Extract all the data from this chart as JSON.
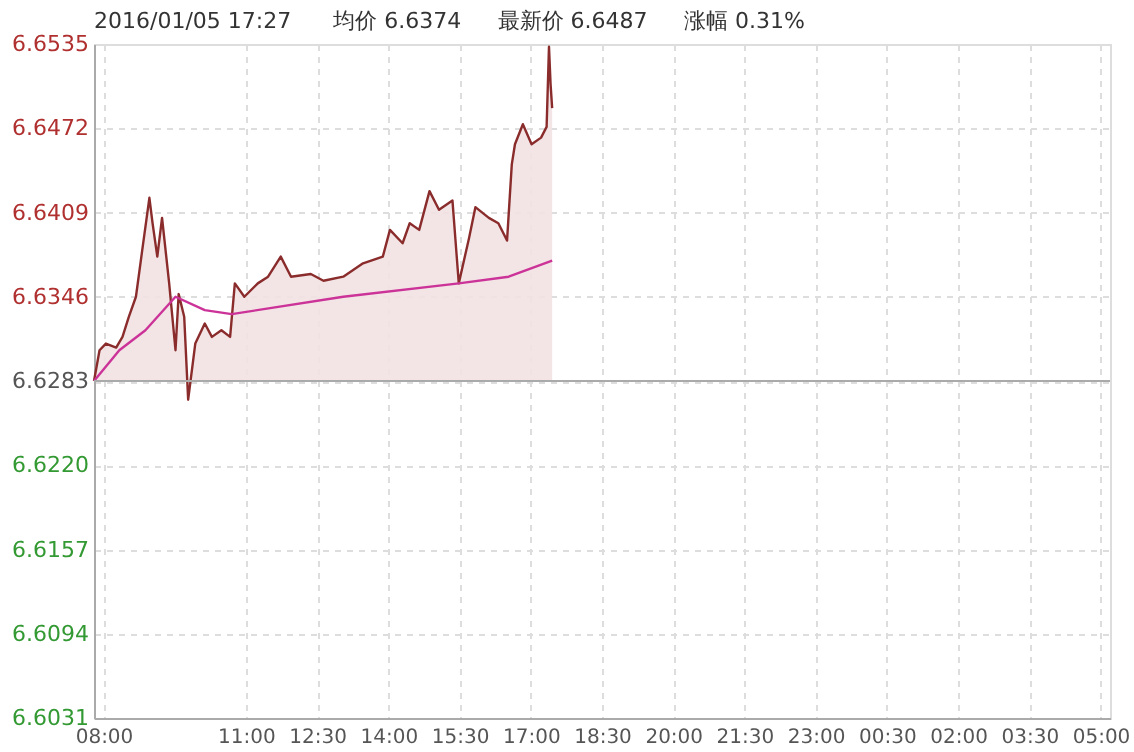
{
  "chart_data": {
    "type": "line",
    "annotations": [
      "2016/01/05 17:27",
      "均价 6.6374",
      "最新价 6.6487",
      "涨幅 0.31%"
    ],
    "xlim": [
      "2016-01-05T07:48",
      "2016-01-06T05:12"
    ],
    "xticks": [
      {
        "value": "2016-01-05T08:00",
        "label": "08:00"
      },
      {
        "value": "2016-01-05T11:00",
        "label": "11:00"
      },
      {
        "value": "2016-01-05T12:30",
        "label": "12:30"
      },
      {
        "value": "2016-01-05T14:00",
        "label": "14:00"
      },
      {
        "value": "2016-01-05T15:30",
        "label": "15:30"
      },
      {
        "value": "2016-01-05T17:00",
        "label": "17:00"
      },
      {
        "value": "2016-01-05T18:30",
        "label": "18:30"
      },
      {
        "value": "2016-01-05T20:00",
        "label": "20:00"
      },
      {
        "value": "2016-01-05T21:30",
        "label": "21:30"
      },
      {
        "value": "2016-01-05T23:00",
        "label": "23:00"
      },
      {
        "value": "2016-01-06T00:30",
        "label": "00:30"
      },
      {
        "value": "2016-01-06T02:00",
        "label": "02:00"
      },
      {
        "value": "2016-01-06T03:30",
        "label": "03:30"
      },
      {
        "value": "2016-01-06T05:00",
        "label": "05:00"
      }
    ],
    "ylim": [
      6.6031,
      6.6535
    ],
    "yticks": [
      6.6031,
      6.6094,
      6.6157,
      {
        "value": 6.622,
        "label": "6.6220"
      },
      6.6283,
      6.6346,
      6.6409,
      6.6472,
      6.6535
    ],
    "grid": true,
    "marker": "none",
    "line_style": "solid",
    "ref_lines": [
      {
        "axis": "y",
        "value": 6.6283,
        "color": "#aaaaaa"
      }
    ],
    "series": [
      {
        "type": "area",
        "color": "#8b2c2c",
        "x": [
          "2016-01-05T07:48",
          "2016-01-05T07:55",
          "2016-01-05T08:03",
          "2016-01-05T08:16",
          "2016-01-05T08:24",
          "2016-01-05T08:32",
          "2016-01-05T08:41",
          "2016-01-05T08:49",
          "2016-01-05T08:58",
          "2016-01-05T09:02",
          "2016-01-05T09:08",
          "2016-01-05T09:14",
          "2016-01-05T09:23",
          "2016-01-05T09:31",
          "2016-01-05T09:35",
          "2016-01-05T09:42",
          "2016-01-05T09:47",
          "2016-01-05T09:56",
          "2016-01-05T10:08",
          "2016-01-05T10:17",
          "2016-01-05T10:29",
          "2016-01-05T10:40",
          "2016-01-05T10:46",
          "2016-01-05T10:58",
          "2016-01-05T11:15",
          "2016-01-05T11:28",
          "2016-01-05T11:44",
          "2016-01-05T11:57",
          "2016-01-05T12:22",
          "2016-01-05T12:38",
          "2016-01-05T13:03",
          "2016-01-05T13:28",
          "2016-01-05T13:53",
          "2016-01-05T14:02",
          "2016-01-05T14:18",
          "2016-01-05T14:27",
          "2016-01-05T14:39",
          "2016-01-05T14:52",
          "2016-01-05T15:04",
          "2016-01-05T15:21",
          "2016-01-05T15:29",
          "2016-01-05T15:42",
          "2016-01-05T15:50",
          "2016-01-05T16:07",
          "2016-01-05T16:19",
          "2016-01-05T16:30",
          "2016-01-05T16:36",
          "2016-01-05T16:40",
          "2016-01-05T16:50",
          "2016-01-05T17:01",
          "2016-01-05T17:13",
          "2016-01-05T17:20",
          "2016-01-05T17:23",
          "2016-01-05T17:25",
          "2016-01-05T17:27"
        ],
        "values": [
          6.6283,
          6.6306,
          6.6311,
          6.6308,
          6.6316,
          6.6331,
          6.6346,
          6.6381,
          6.642,
          6.6401,
          6.6376,
          6.6405,
          6.6356,
          6.6306,
          6.6348,
          6.6331,
          6.6269,
          6.6311,
          6.6326,
          6.6316,
          6.6321,
          6.6316,
          6.6356,
          6.6346,
          6.6356,
          6.6361,
          6.6376,
          6.6361,
          6.6363,
          6.6358,
          6.6361,
          6.6371,
          6.6376,
          6.6396,
          6.6386,
          6.6401,
          6.6396,
          6.6425,
          6.6411,
          6.6418,
          6.6356,
          6.639,
          6.6413,
          6.6405,
          6.6401,
          6.6388,
          6.6445,
          6.646,
          6.6475,
          6.646,
          6.6465,
          6.6473,
          6.6533,
          6.6505,
          6.6487
        ]
      },
      {
        "color": "#cc3399",
        "x": [
          "2016-01-05T07:48",
          "2016-01-05T08:20",
          "2016-01-05T08:53",
          "2016-01-05T09:31",
          "2016-01-05T10:08",
          "2016-01-05T10:42",
          "2016-01-05T13:03",
          "2016-01-05T15:29",
          "2016-01-05T16:32",
          "2016-01-05T17:27"
        ],
        "values": [
          6.6283,
          6.6306,
          6.6321,
          6.6346,
          6.6336,
          6.6333,
          6.6346,
          6.6356,
          6.6361,
          6.6373
        ]
      }
    ]
  }
}
